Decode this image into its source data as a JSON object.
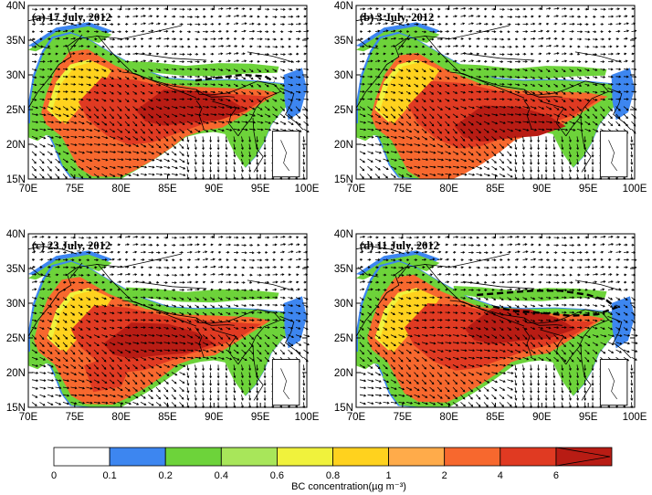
{
  "panels": [
    {
      "id": "a",
      "title": "(a) 17 July, 2012"
    },
    {
      "id": "b",
      "title": "(b) 3 July, 2012"
    },
    {
      "id": "c",
      "title": "(c) 23 July, 2012"
    },
    {
      "id": "d",
      "title": "(d) 11 July, 2012"
    }
  ],
  "map": {
    "lon_ticks": [
      "70E",
      "75E",
      "80E",
      "85E",
      "90E",
      "95E",
      "100E"
    ],
    "lat_ticks": [
      "15N",
      "20N",
      "25N",
      "30N",
      "35N",
      "40N"
    ],
    "lon_range": [
      70,
      100
    ],
    "lat_range": [
      15,
      40
    ]
  },
  "colorbar": {
    "label": "BC concentration(µg m⁻³)",
    "ticks": [
      "0",
      "0.1",
      "0.2",
      "0.4",
      "0.6",
      "0.8",
      "1",
      "2",
      "4",
      "6"
    ],
    "colors": [
      "#ffffff",
      "#3d86f0",
      "#6dd33a",
      "#a8e65a",
      "#f0f23c",
      "#ffd21e",
      "#ffab4a",
      "#f7682e",
      "#e03a22",
      "#b81c14"
    ]
  },
  "colors": {
    "wind_vectors": "#000000",
    "boundaries": "#000000",
    "no_data": "#ffffff"
  }
}
